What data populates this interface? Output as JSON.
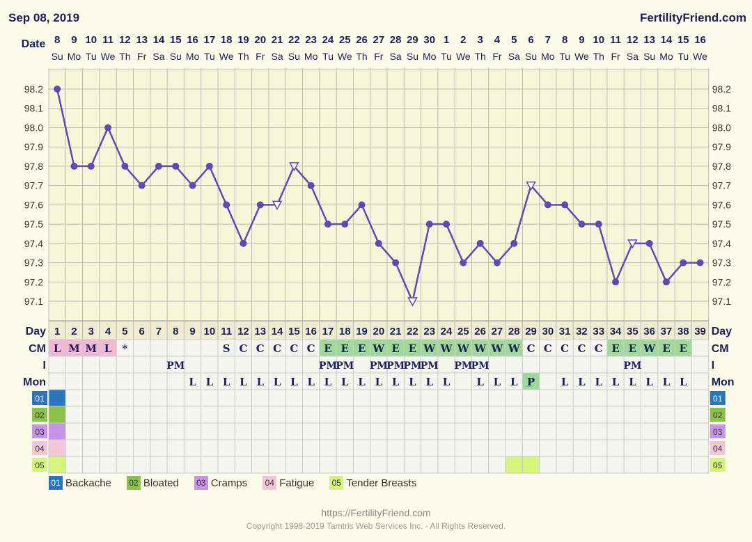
{
  "header": {
    "date": "Sep 08, 2019",
    "site": "FertilityFriend.com"
  },
  "footer": {
    "url": "https://FertilityFriend.com",
    "copyright": "Copyright 1998-2019 Tamtris Web Services Inc. - All Rights Reserved."
  },
  "row_labels": {
    "date": "Date",
    "day": "Day",
    "cm": "CM",
    "i": "I",
    "mon": "Mon"
  },
  "colors": {
    "line": "#5b4bb5",
    "grid_bg": "#f8f6d8",
    "table_bg": "#f5f5f0",
    "green": "#9ed99a",
    "pink": "#f2b8d4"
  },
  "legend": [
    {
      "code": "01",
      "label": "Backache",
      "color": "#2a74c0"
    },
    {
      "code": "02",
      "label": "Bloated",
      "color": "#8bc34a"
    },
    {
      "code": "03",
      "label": "Cramps",
      "color": "#c792ea"
    },
    {
      "code": "04",
      "label": "Fatigue",
      "color": "#f4c6da"
    },
    {
      "code": "05",
      "label": "Tender Breasts",
      "color": "#d4f57a"
    }
  ],
  "chart_data": {
    "type": "line",
    "title": "Sep 08, 2019",
    "ylim": [
      97.0,
      98.3
    ],
    "y_ticks": [
      "98.2",
      "98.1",
      "98.0",
      "97.9",
      "97.8",
      "97.7",
      "97.6",
      "97.5",
      "97.4",
      "97.3",
      "97.2",
      "97.1"
    ],
    "dates": [
      "8",
      "9",
      "10",
      "11",
      "12",
      "13",
      "14",
      "15",
      "16",
      "17",
      "18",
      "19",
      "20",
      "21",
      "22",
      "23",
      "24",
      "25",
      "26",
      "27",
      "28",
      "29",
      "30",
      "1",
      "2",
      "3",
      "4",
      "5",
      "6",
      "7",
      "8",
      "9",
      "10",
      "11",
      "12",
      "13",
      "14",
      "15",
      "16"
    ],
    "weekdays": [
      "Su",
      "Mo",
      "Tu",
      "We",
      "Th",
      "Fr",
      "Sa",
      "Su",
      "Mo",
      "Tu",
      "We",
      "Th",
      "Fr",
      "Sa",
      "Su",
      "Mo",
      "Tu",
      "We",
      "Th",
      "Fr",
      "Sa",
      "Su",
      "Mo",
      "Tu",
      "We",
      "Th",
      "Fr",
      "Sa",
      "Su",
      "Mo",
      "Tu",
      "We",
      "Th",
      "Fr",
      "Sa",
      "Su",
      "Mo",
      "Tu",
      "We"
    ],
    "cycle_days": [
      "1",
      "2",
      "3",
      "4",
      "5",
      "6",
      "7",
      "8",
      "9",
      "10",
      "11",
      "12",
      "13",
      "14",
      "15",
      "16",
      "17",
      "18",
      "19",
      "20",
      "21",
      "22",
      "23",
      "24",
      "25",
      "26",
      "27",
      "28",
      "29",
      "30",
      "31",
      "32",
      "33",
      "34",
      "35",
      "36",
      "37",
      "38",
      "39"
    ],
    "temps": [
      98.2,
      97.8,
      97.8,
      98.0,
      97.8,
      97.7,
      97.8,
      97.8,
      97.7,
      97.8,
      97.6,
      97.4,
      97.6,
      97.6,
      97.8,
      97.7,
      97.5,
      97.5,
      97.6,
      97.4,
      97.3,
      97.1,
      97.5,
      97.5,
      97.3,
      97.4,
      97.3,
      97.4,
      97.7,
      97.6,
      97.6,
      97.5,
      97.5,
      97.2,
      97.4,
      97.4,
      97.2,
      97.3,
      97.3
    ],
    "open_markers": [
      13,
      14,
      21,
      28,
      34
    ],
    "cm": [
      "L",
      "M",
      "M",
      "L",
      "*",
      "",
      "",
      "",
      "",
      "",
      "S",
      "C",
      "C",
      "C",
      "C",
      "C",
      "E",
      "E",
      "E",
      "W",
      "E",
      "E",
      "W",
      "W",
      "W",
      "W",
      "W",
      "W",
      "C",
      "C",
      "C",
      "C",
      "C",
      "E",
      "E",
      "W",
      "E",
      "E",
      ""
    ],
    "intercourse": [
      "",
      "",
      "",
      "",
      "",
      "",
      "",
      "PM",
      "",
      "",
      "",
      "",
      "",
      "",
      "",
      "",
      "PM",
      "PM",
      "",
      "PM",
      "PM",
      "PM",
      "PM",
      "",
      "PM",
      "PM",
      "",
      "",
      "",
      "",
      "",
      "",
      "",
      "",
      "PM",
      "",
      "",
      "",
      ""
    ],
    "mon": [
      "",
      "",
      "",
      "",
      "",
      "",
      "",
      "",
      "L",
      "L",
      "L",
      "L",
      "L",
      "L",
      "L",
      "L",
      "L",
      "L",
      "L",
      "L",
      "L",
      "L",
      "L",
      "L",
      "",
      "L",
      "L",
      "L",
      "P",
      "",
      "L",
      "L",
      "L",
      "L",
      "L",
      "L",
      "L",
      "L",
      ""
    ],
    "symptoms": {
      "01": [
        0
      ],
      "02": [
        0
      ],
      "03": [
        0
      ],
      "04": [
        0
      ],
      "05": [
        0,
        27,
        28
      ]
    }
  }
}
